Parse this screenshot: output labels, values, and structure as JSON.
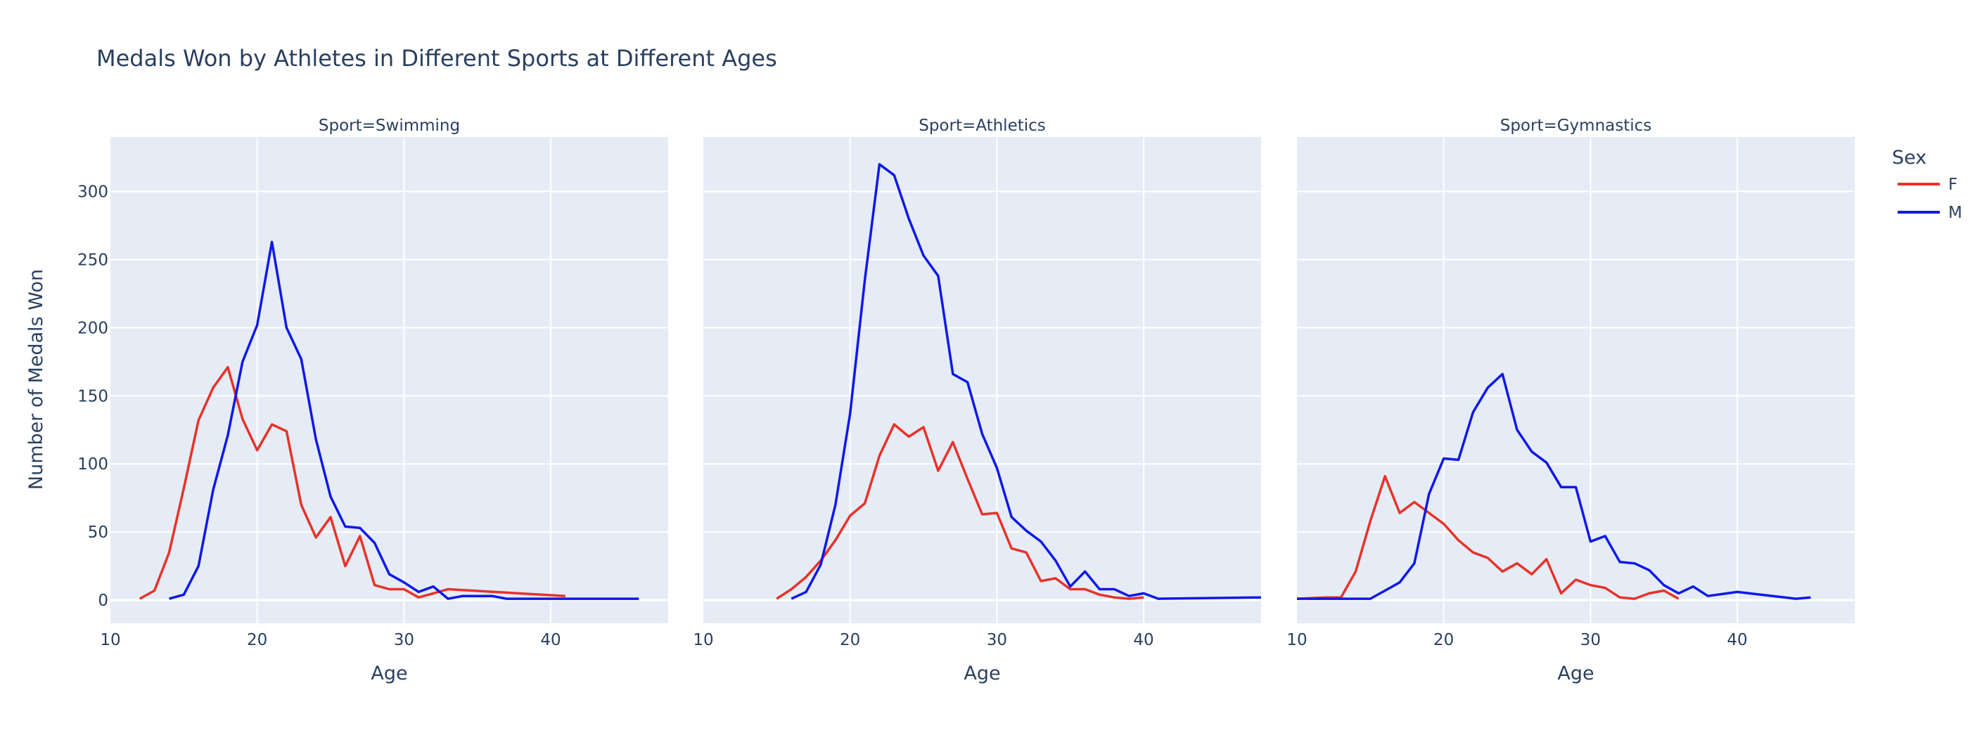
{
  "chart_data": {
    "type": "line",
    "title": "Medals Won by Athletes in Different Sports at Different Ages",
    "ylabel": "Number of Medals Won",
    "xlabel": "Age",
    "ylim": [
      -17,
      340
    ],
    "yticks": [
      0,
      50,
      100,
      150,
      200,
      250,
      300
    ],
    "legend_title": "Sex",
    "legend_position": "right",
    "grid": true,
    "series_colors": {
      "F": "#e8322a",
      "M": "#1018e8"
    },
    "panels": [
      {
        "title": "Sport=Swimming",
        "xlim": [
          10,
          48
        ],
        "xticks": [
          10,
          20,
          30,
          40
        ],
        "series": [
          {
            "name": "F",
            "x": [
              12,
              13,
              14,
              15,
              16,
              17,
              18,
              19,
              20,
              21,
              22,
              23,
              24,
              25,
              26,
              27,
              28,
              29,
              30,
              31,
              32,
              33,
              41
            ],
            "y": [
              1,
              7,
              35,
              82,
              132,
              156,
              171,
              133,
              110,
              129,
              124,
              70,
              46,
              61,
              25,
              47,
              11,
              8,
              8,
              2,
              5,
              8,
              3
            ]
          },
          {
            "name": "M",
            "x": [
              14,
              15,
              16,
              17,
              18,
              19,
              20,
              21,
              22,
              23,
              24,
              25,
              26,
              27,
              28,
              29,
              30,
              31,
              32,
              33,
              34,
              36,
              37,
              40,
              46
            ],
            "y": [
              1,
              4,
              25,
              81,
              121,
              175,
              202,
              263,
              200,
              177,
              118,
              76,
              54,
              53,
              42,
              19,
              13,
              6,
              10,
              1,
              3,
              3,
              1,
              1,
              1
            ]
          }
        ]
      },
      {
        "title": "Sport=Athletics",
        "xlim": [
          10,
          48
        ],
        "xticks": [
          10,
          20,
          30,
          40
        ],
        "series": [
          {
            "name": "F",
            "x": [
              15,
              16,
              17,
              18,
              19,
              20,
              21,
              22,
              23,
              24,
              25,
              26,
              27,
              28,
              29,
              30,
              31,
              32,
              33,
              34,
              35,
              36,
              37,
              38,
              39,
              40
            ],
            "y": [
              1,
              8,
              17,
              29,
              44,
              62,
              71,
              106,
              129,
              120,
              127,
              95,
              116,
              89,
              63,
              64,
              38,
              35,
              14,
              16,
              8,
              8,
              4,
              2,
              1,
              2
            ]
          },
          {
            "name": "M",
            "x": [
              16,
              17,
              18,
              19,
              20,
              21,
              22,
              23,
              24,
              25,
              26,
              27,
              28,
              29,
              30,
              31,
              32,
              33,
              34,
              35,
              36,
              37,
              38,
              39,
              40,
              41,
              48
            ],
            "y": [
              1,
              6,
              26,
              70,
              137,
              235,
              320,
              312,
              280,
              253,
              238,
              166,
              160,
              122,
              97,
              61,
              51,
              43,
              29,
              10,
              21,
              8,
              8,
              3,
              5,
              1,
              2
            ]
          }
        ]
      },
      {
        "title": "Sport=Gymnastics",
        "xlim": [
          10,
          48
        ],
        "xticks": [
          10,
          20,
          30,
          40
        ],
        "series": [
          {
            "name": "F",
            "x": [
              10,
              12,
              13,
              14,
              15,
              16,
              17,
              18,
              19,
              20,
              21,
              22,
              23,
              24,
              25,
              26,
              27,
              28,
              29,
              30,
              31,
              32,
              33,
              34,
              35,
              36
            ],
            "y": [
              1,
              2,
              2,
              21,
              58,
              91,
              64,
              72,
              64,
              56,
              44,
              35,
              31,
              21,
              27,
              19,
              30,
              5,
              15,
              11,
              9,
              2,
              1,
              5,
              7,
              1
            ]
          },
          {
            "name": "M",
            "x": [
              10,
              11,
              12,
              13,
              14,
              15,
              16,
              17,
              18,
              19,
              20,
              21,
              22,
              23,
              24,
              25,
              26,
              27,
              28,
              29,
              30,
              31,
              32,
              33,
              34,
              35,
              36,
              37,
              38,
              40,
              44,
              45
            ],
            "y": [
              1,
              1,
              1,
              1,
              1,
              1,
              7,
              13,
              27,
              78,
              104,
              103,
              138,
              156,
              166,
              125,
              109,
              101,
              83,
              83,
              43,
              47,
              28,
              27,
              22,
              11,
              5,
              10,
              3,
              6,
              1,
              2
            ]
          }
        ]
      }
    ]
  }
}
